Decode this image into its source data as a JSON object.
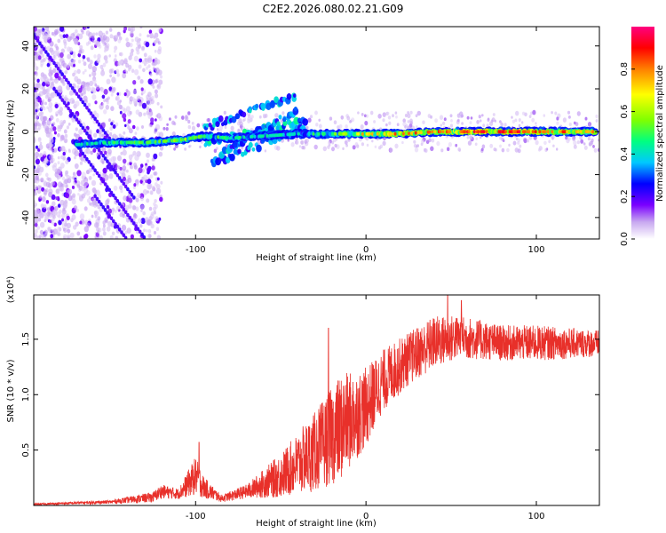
{
  "title": "C2E2.2026.080.02.21.G09",
  "chart_data": [
    {
      "type": "heatmap",
      "name": "spectrogram",
      "xlabel": "Height of straight line (km)",
      "ylabel": "Frequency (Hz)",
      "xlim": [
        -195,
        137
      ],
      "ylim": [
        -50,
        49
      ],
      "xticks": [
        -100,
        0,
        100
      ],
      "xtick_labels": [
        "-100",
        "0",
        "100"
      ],
      "yticks": [
        -40,
        -20,
        0,
        20,
        40
      ],
      "ytick_labels": [
        "-40",
        "-20",
        "0",
        "20",
        "40"
      ],
      "colorbar": {
        "label": "Normalized spectral amplitude",
        "range": [
          0,
          1
        ],
        "ticks": [
          0,
          0.2,
          0.4,
          0.6,
          0.8
        ],
        "tick_labels": [
          "0.0",
          "0.2",
          "0.4",
          "0.6",
          "0.8"
        ],
        "colormap": [
          "#ffffff",
          "#c8a8f0",
          "#7a00ff",
          "#0000ff",
          "#00c8ff",
          "#00ff80",
          "#80ff00",
          "#ffff00",
          "#ff8000",
          "#ff0000",
          "#ff0080"
        ]
      },
      "main_ridge": [
        {
          "x": -170,
          "f": -6,
          "a": 0.45
        },
        {
          "x": -150,
          "f": -5,
          "a": 0.5
        },
        {
          "x": -130,
          "f": -5,
          "a": 0.55
        },
        {
          "x": -110,
          "f": -4,
          "a": 0.6
        },
        {
          "x": -95,
          "f": -2,
          "a": 0.55
        },
        {
          "x": -80,
          "f": -3,
          "a": 0.5
        },
        {
          "x": -60,
          "f": -2,
          "a": 0.45
        },
        {
          "x": -40,
          "f": -1,
          "a": 0.45
        },
        {
          "x": -20,
          "f": -1,
          "a": 0.55
        },
        {
          "x": 0,
          "f": -1,
          "a": 0.75
        },
        {
          "x": 20,
          "f": -1,
          "a": 0.8
        },
        {
          "x": 40,
          "f": 0,
          "a": 0.8
        },
        {
          "x": 60,
          "f": 0,
          "a": 0.9
        },
        {
          "x": 80,
          "f": 0,
          "a": 0.9
        },
        {
          "x": 100,
          "f": 0,
          "a": 0.85
        },
        {
          "x": 120,
          "f": 0,
          "a": 0.8
        },
        {
          "x": 135,
          "f": 0,
          "a": 0.75
        }
      ],
      "branches": [
        {
          "from": [
            -95,
            2
          ],
          "to": [
            -40,
            17
          ],
          "a": 0.35
        },
        {
          "from": [
            -95,
            -5
          ],
          "to": [
            -35,
            5
          ],
          "a": 0.4
        },
        {
          "from": [
            -90,
            -15
          ],
          "to": [
            -35,
            3
          ],
          "a": 0.35
        },
        {
          "from": [
            -85,
            -10
          ],
          "to": [
            -40,
            10
          ],
          "a": 0.35
        }
      ]
    },
    {
      "type": "line",
      "name": "snr",
      "xlabel": "Height of straight line (km)",
      "ylabel": "SNR (10 * v/v)",
      "multiplier_label": "(x10⁴)",
      "xlim": [
        -195,
        137
      ],
      "ylim": [
        0,
        1.9
      ],
      "xticks": [
        -100,
        0,
        100
      ],
      "xtick_labels": [
        "-100",
        "0",
        "100"
      ],
      "yticks": [
        0.5,
        1.0,
        1.5
      ],
      "ytick_labels": [
        "0.5",
        "1.0",
        "1.5"
      ],
      "color": "#e8302a",
      "envelope": [
        {
          "x": -195,
          "base": 0.01,
          "noise": 0.01
        },
        {
          "x": -150,
          "base": 0.03,
          "noise": 0.02
        },
        {
          "x": -125,
          "base": 0.07,
          "noise": 0.06
        },
        {
          "x": -120,
          "base": 0.12,
          "noise": 0.08
        },
        {
          "x": -110,
          "base": 0.1,
          "noise": 0.06
        },
        {
          "x": -100,
          "base": 0.25,
          "noise": 0.22
        },
        {
          "x": -95,
          "base": 0.15,
          "noise": 0.12
        },
        {
          "x": -85,
          "base": 0.06,
          "noise": 0.04
        },
        {
          "x": -70,
          "base": 0.12,
          "noise": 0.08
        },
        {
          "x": -50,
          "base": 0.25,
          "noise": 0.25
        },
        {
          "x": -30,
          "base": 0.45,
          "noise": 0.45
        },
        {
          "x": -15,
          "base": 0.65,
          "noise": 0.6
        },
        {
          "x": 0,
          "base": 0.85,
          "noise": 0.45
        },
        {
          "x": 10,
          "base": 1.1,
          "noise": 0.35
        },
        {
          "x": 25,
          "base": 1.3,
          "noise": 0.3
        },
        {
          "x": 40,
          "base": 1.45,
          "noise": 0.3
        },
        {
          "x": 55,
          "base": 1.5,
          "noise": 0.25
        },
        {
          "x": 80,
          "base": 1.45,
          "noise": 0.2
        },
        {
          "x": 100,
          "base": 1.45,
          "noise": 0.2
        },
        {
          "x": 137,
          "base": 1.45,
          "noise": 0.15
        }
      ],
      "peaks": [
        {
          "x": -98,
          "y": 0.57
        },
        {
          "x": -22,
          "y": 1.6
        },
        {
          "x": 48,
          "y": 1.9
        },
        {
          "x": 56,
          "y": 1.85
        }
      ]
    }
  ]
}
